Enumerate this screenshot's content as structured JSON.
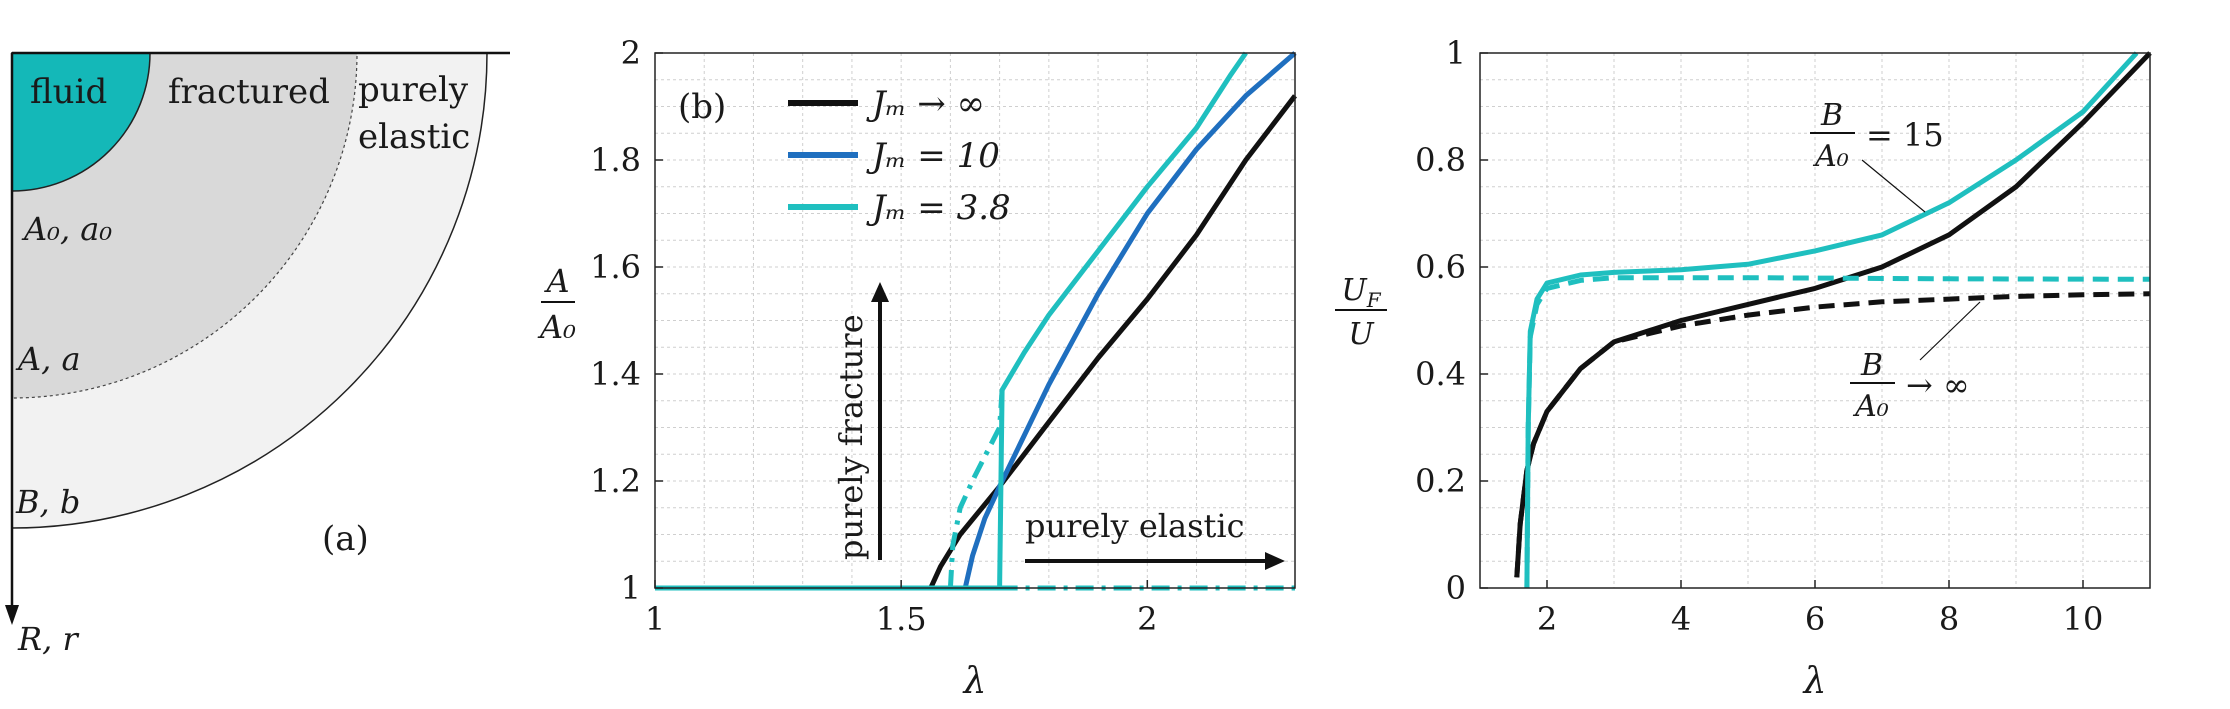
{
  "colors": {
    "black": "#111111",
    "blue": "#1f6fbf",
    "cyan": "#1fbfbf",
    "fluid": "#14b8b8",
    "fractured": "#d9d9d9",
    "elastic": "#f2f2f2"
  },
  "panel_a": {
    "label": "(a)",
    "regions": {
      "fluid": "fluid",
      "fractured": "fractured",
      "elastic_line1": "purely",
      "elastic_line2": "elastic"
    },
    "radii": {
      "inner": "A₀, a₀",
      "front": "A, a",
      "outer": "B, b"
    },
    "axis": "R, r"
  },
  "chart_data": [
    {
      "type": "line",
      "panel_label": "(b)",
      "xlabel": "λ",
      "ylabel_num": "A",
      "ylabel_den": "A₀",
      "xlim": [
        1,
        2.3
      ],
      "ylim": [
        1,
        2
      ],
      "xticks": [
        "1",
        "1.5",
        "2"
      ],
      "xtick_values": [
        1,
        1.5,
        2
      ],
      "yticks": [
        "1",
        "1.2",
        "1.4",
        "1.6",
        "1.8",
        "2"
      ],
      "ytick_values": [
        1,
        1.2,
        1.4,
        1.6,
        1.8,
        2
      ],
      "legend": [
        "Jₘ → ∞",
        "Jₘ = 10",
        "Jₘ = 3.8"
      ],
      "annotations": {
        "vertical": "purely fracture",
        "horizontal": "purely elastic"
      },
      "series": [
        {
          "name": "Jₘ → ∞",
          "color": "black",
          "style": "solid",
          "points": [
            [
              1,
              1
            ],
            [
              1.56,
              1
            ],
            [
              1.58,
              1.04
            ],
            [
              1.62,
              1.1
            ],
            [
              1.7,
              1.19
            ],
            [
              1.8,
              1.31
            ],
            [
              1.9,
              1.43
            ],
            [
              2.0,
              1.54
            ],
            [
              2.1,
              1.66
            ],
            [
              2.2,
              1.8
            ],
            [
              2.3,
              1.92
            ]
          ]
        },
        {
          "name": "Jₘ = 10",
          "color": "blue",
          "style": "solid",
          "points": [
            [
              1,
              1
            ],
            [
              1.63,
              1
            ],
            [
              1.645,
              1.06
            ],
            [
              1.67,
              1.13
            ],
            [
              1.7,
              1.19
            ],
            [
              1.8,
              1.38
            ],
            [
              1.9,
              1.55
            ],
            [
              2.0,
              1.7
            ],
            [
              2.1,
              1.82
            ],
            [
              2.2,
              1.92
            ],
            [
              2.3,
              2.0
            ]
          ]
        },
        {
          "name": "Jₘ = 3.8",
          "color": "cyan",
          "style": "solid",
          "points": [
            [
              1,
              1
            ],
            [
              1.7,
              1
            ],
            [
              1.705,
              1.37
            ],
            [
              1.75,
              1.44
            ],
            [
              1.8,
              1.51
            ],
            [
              1.9,
              1.63
            ],
            [
              2.0,
              1.75
            ],
            [
              2.1,
              1.86
            ],
            [
              2.17,
              1.96
            ],
            [
              2.2,
              2.0
            ]
          ]
        },
        {
          "name": "",
          "color": "cyan",
          "style": "dashdot",
          "points": [
            [
              1.6,
              1.0
            ],
            [
              1.605,
              1.08
            ],
            [
              1.62,
              1.15
            ],
            [
              1.65,
              1.21
            ],
            [
              1.7,
              1.3
            ],
            [
              1.705,
              1.37
            ]
          ]
        },
        {
          "name": "",
          "color": "cyan",
          "style": "dashdot",
          "points": [
            [
              1.7,
              1.0
            ],
            [
              2.3,
              1.0
            ]
          ]
        }
      ]
    },
    {
      "type": "line",
      "xlabel": "λ",
      "ylabel_num": "U_F",
      "ylabel_den": "U",
      "xlim": [
        1,
        11
      ],
      "ylim": [
        0,
        1
      ],
      "xticks": [
        "2",
        "4",
        "6",
        "8",
        "10"
      ],
      "xtick_values": [
        2,
        4,
        6,
        8,
        10
      ],
      "yticks": [
        "0",
        "0.2",
        "0.4",
        "0.6",
        "0.8",
        "1"
      ],
      "ytick_values": [
        0,
        0.2,
        0.4,
        0.6,
        0.8,
        1
      ],
      "annotations": {
        "upper_num": "B",
        "upper_den": "A₀",
        "upper_val": "= 15",
        "lower_num": "B",
        "lower_den": "A₀",
        "lower_val": "→ ∞"
      },
      "series": [
        {
          "name": "",
          "color": "black",
          "style": "solid",
          "points": [
            [
              1.55,
              0.02
            ],
            [
              1.6,
              0.12
            ],
            [
              1.7,
              0.22
            ],
            [
              1.8,
              0.27
            ],
            [
              2.0,
              0.33
            ],
            [
              2.5,
              0.41
            ],
            [
              3,
              0.46
            ],
            [
              4,
              0.5
            ],
            [
              5,
              0.53
            ],
            [
              6,
              0.56
            ],
            [
              7,
              0.6
            ],
            [
              8,
              0.66
            ],
            [
              9,
              0.75
            ],
            [
              10,
              0.87
            ],
            [
              11,
              1.0
            ]
          ]
        },
        {
          "name": "",
          "color": "black",
          "style": "dashed",
          "points": [
            [
              1.55,
              0.02
            ],
            [
              1.6,
              0.12
            ],
            [
              1.7,
              0.22
            ],
            [
              1.8,
              0.27
            ],
            [
              2.0,
              0.33
            ],
            [
              2.5,
              0.41
            ],
            [
              3,
              0.46
            ],
            [
              4,
              0.49
            ],
            [
              5,
              0.51
            ],
            [
              6,
              0.525
            ],
            [
              7,
              0.535
            ],
            [
              8,
              0.54
            ],
            [
              9,
              0.545
            ],
            [
              10,
              0.548
            ],
            [
              11,
              0.55
            ]
          ]
        },
        {
          "name": "",
          "color": "cyan",
          "style": "solid",
          "points": [
            [
              1.7,
              0.0
            ],
            [
              1.72,
              0.3
            ],
            [
              1.75,
              0.48
            ],
            [
              1.85,
              0.54
            ],
            [
              2.0,
              0.57
            ],
            [
              2.5,
              0.585
            ],
            [
              3,
              0.59
            ],
            [
              4,
              0.595
            ],
            [
              5,
              0.605
            ],
            [
              6,
              0.63
            ],
            [
              7,
              0.66
            ],
            [
              8,
              0.72
            ],
            [
              9,
              0.8
            ],
            [
              10,
              0.89
            ],
            [
              10.8,
              1.0
            ]
          ]
        },
        {
          "name": "",
          "color": "cyan",
          "style": "dashed",
          "points": [
            [
              1.7,
              0.0
            ],
            [
              1.72,
              0.3
            ],
            [
              1.75,
              0.47
            ],
            [
              1.85,
              0.53
            ],
            [
              2.0,
              0.56
            ],
            [
              2.5,
              0.575
            ],
            [
              3,
              0.58
            ],
            [
              5,
              0.58
            ],
            [
              8,
              0.578
            ],
            [
              11,
              0.577
            ]
          ]
        }
      ]
    }
  ]
}
